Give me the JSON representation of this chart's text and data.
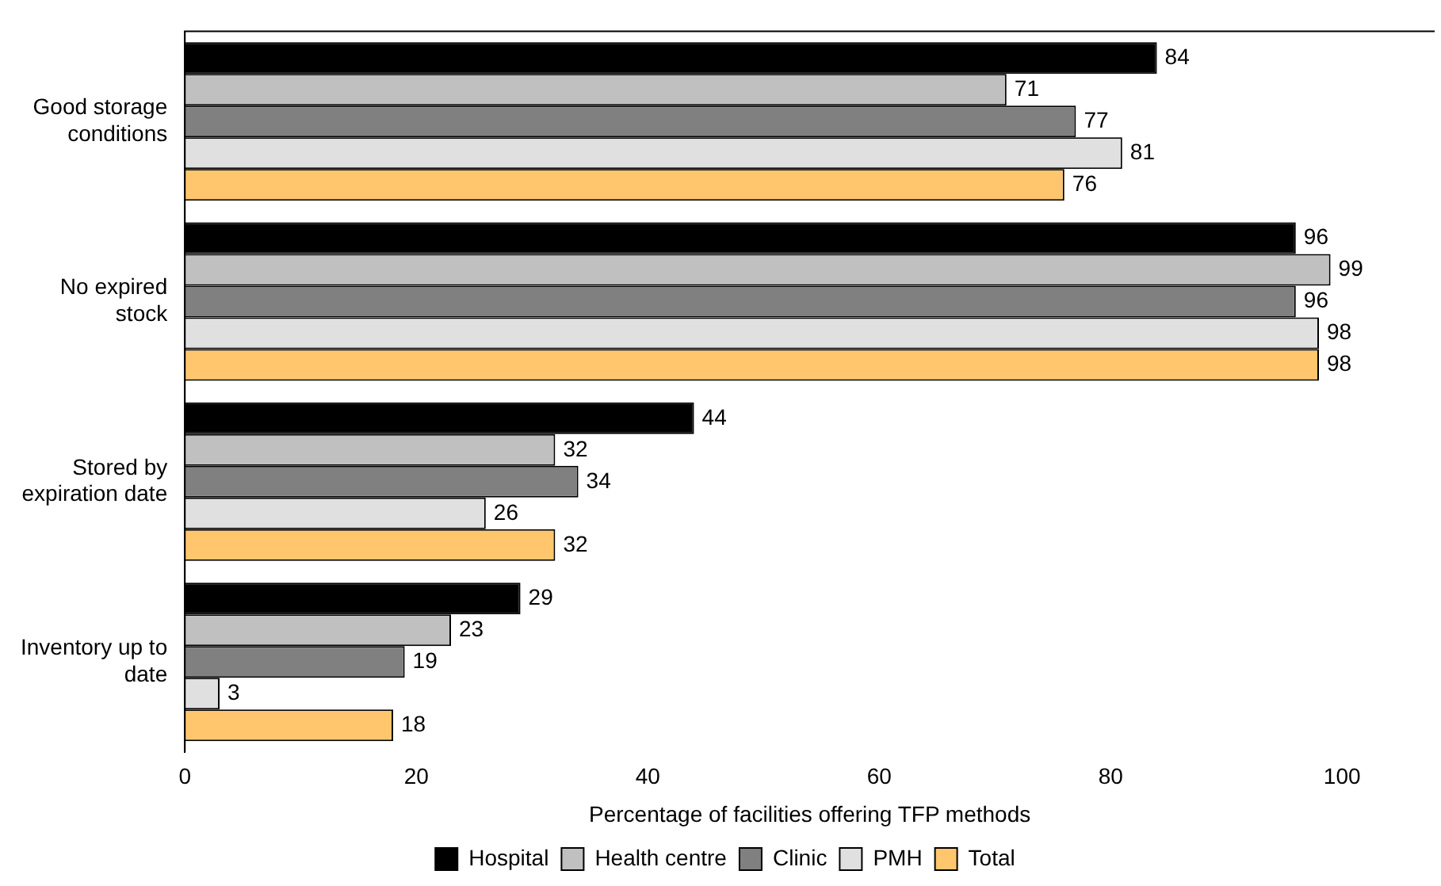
{
  "chart_data": {
    "type": "bar",
    "orientation": "horizontal",
    "xlabel": "Percentage of facilities offering TFP methods",
    "categories": [
      "Good storage conditions",
      "No expired stock",
      "Stored by expiration date",
      "Inventory up to date"
    ],
    "series": [
      {
        "name": "Hospital",
        "color": "#000000",
        "values": [
          84,
          96,
          44,
          29
        ]
      },
      {
        "name": "Health centre",
        "color": "#c0c0c0",
        "values": [
          71,
          99,
          32,
          23
        ]
      },
      {
        "name": "Clinic",
        "color": "#808080",
        "values": [
          77,
          96,
          34,
          19
        ]
      },
      {
        "name": "PMH",
        "color": "#e0e0e0",
        "values": [
          81,
          98,
          26,
          3
        ]
      },
      {
        "name": "Total",
        "color": "#ffc66e",
        "values": [
          76,
          98,
          32,
          18
        ]
      }
    ],
    "xlim": [
      0,
      108
    ],
    "xticks": [
      0,
      20,
      40,
      60,
      80,
      100
    ],
    "grid": false,
    "legend": "bottom",
    "data_labels": true
  }
}
